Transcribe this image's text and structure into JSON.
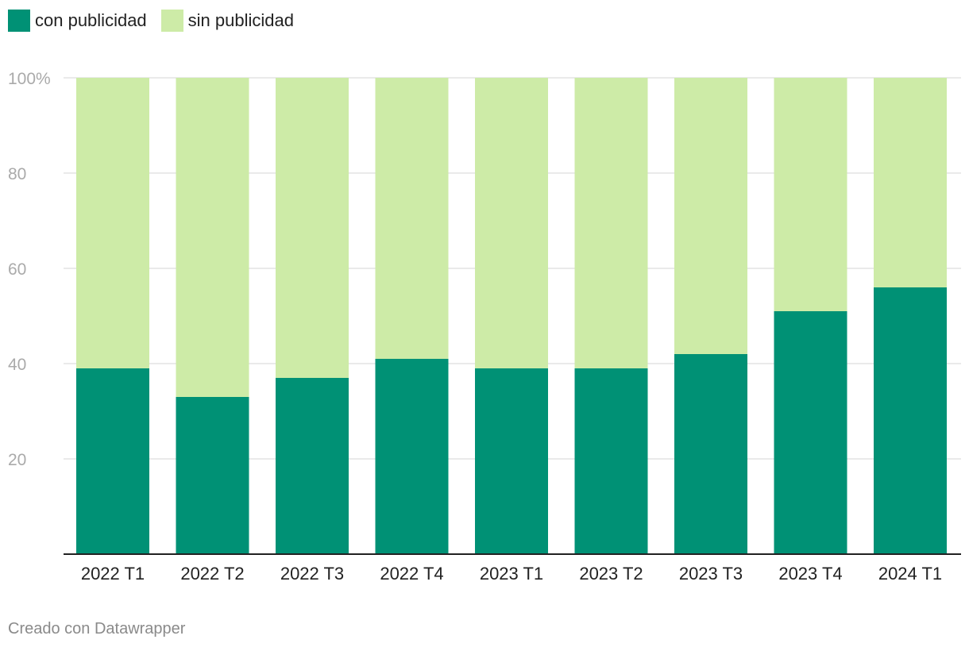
{
  "legend": [
    {
      "label": "con publicidad",
      "color": "#009175"
    },
    {
      "label": "sin publicidad",
      "color": "#cdeba7"
    }
  ],
  "footer": "Creado con Datawrapper",
  "chart_data": {
    "type": "bar",
    "stacked": true,
    "categories": [
      "2022 T1",
      "2022 T2",
      "2022 T3",
      "2022 T4",
      "2023 T1",
      "2023 T2",
      "2023 T3",
      "2023 T4",
      "2024 T1"
    ],
    "series": [
      {
        "name": "con publicidad",
        "color": "#009175",
        "values": [
          39,
          33,
          37,
          41,
          39,
          39,
          42,
          51,
          56
        ]
      },
      {
        "name": "sin publicidad",
        "color": "#cdeba7",
        "values": [
          61,
          67,
          63,
          59,
          61,
          61,
          58,
          49,
          44
        ]
      }
    ],
    "ylim": [
      0,
      100
    ],
    "yticks": [
      20,
      40,
      60,
      80,
      100
    ],
    "ytick_labels": [
      "20",
      "40",
      "60",
      "80",
      "100%"
    ],
    "grid": true,
    "legend_position": "top-left",
    "title": "",
    "xlabel": "",
    "ylabel": ""
  }
}
